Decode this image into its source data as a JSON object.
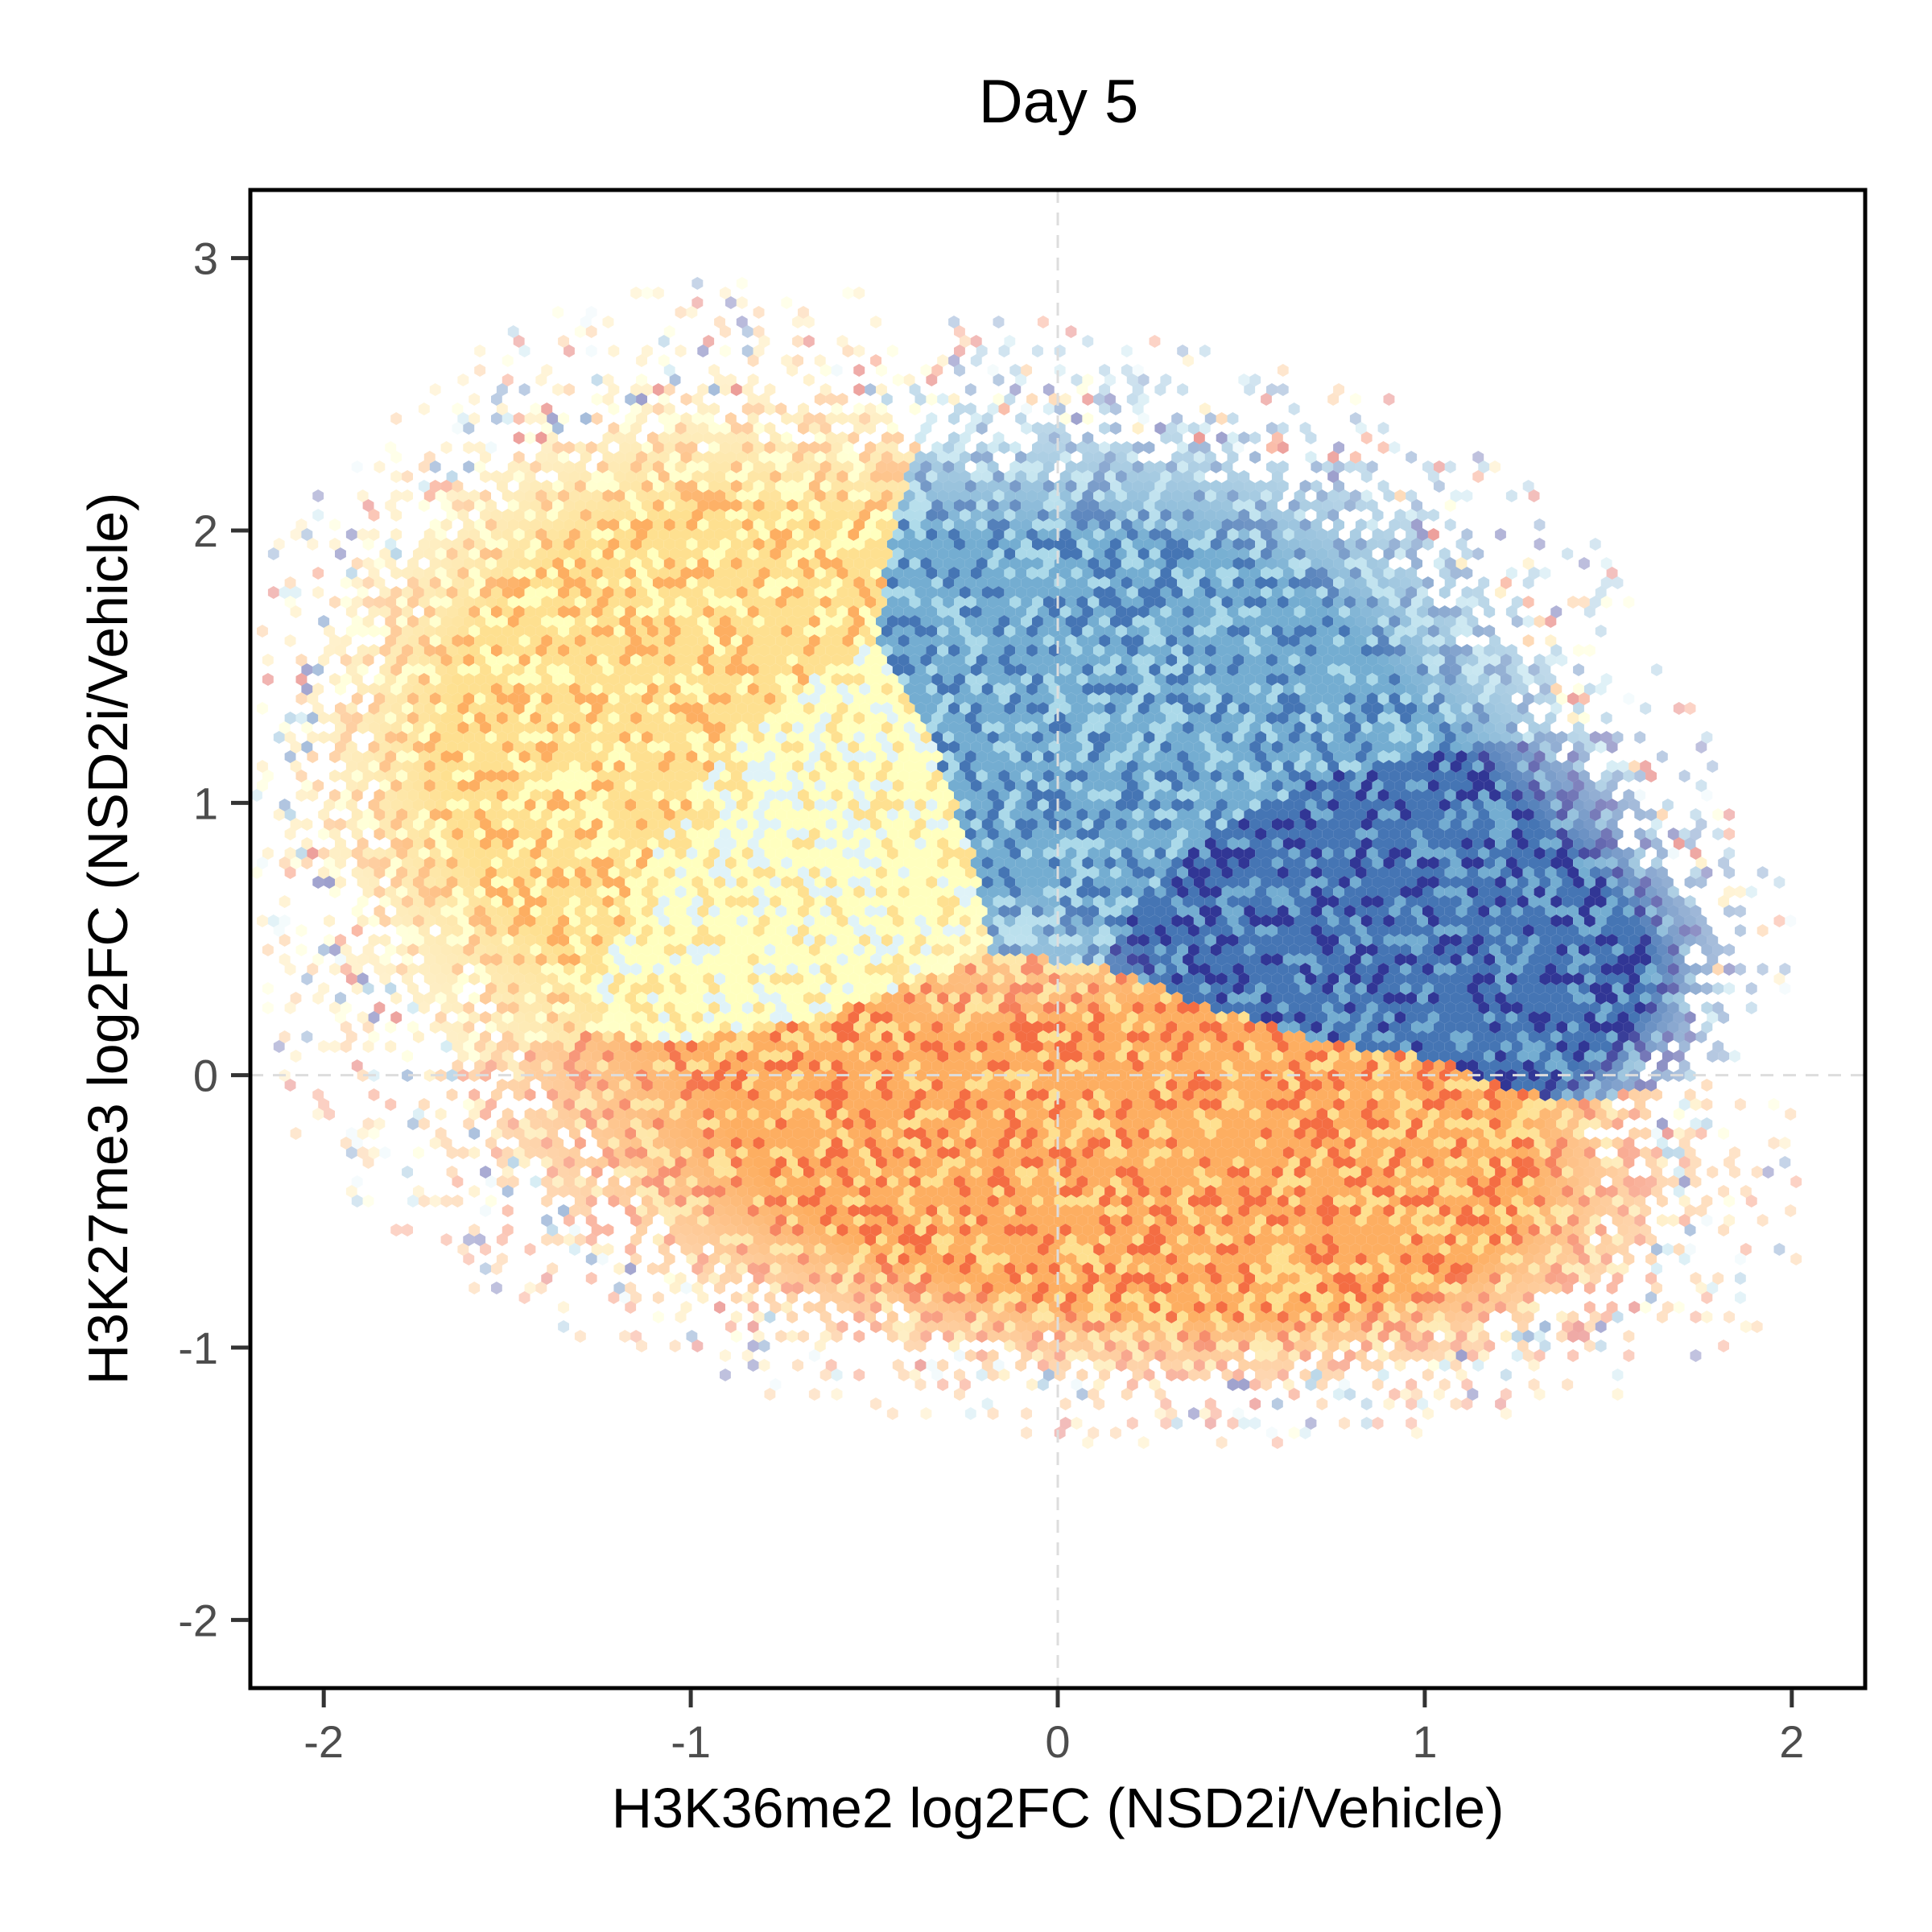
{
  "chart_data": {
    "type": "heatmap",
    "subtype": "hexbin",
    "title": "Day 5",
    "xlabel": "H3K36me2 log2FC (NSD2i/Vehicle)",
    "ylabel": "H3K27me3 log2FC (NSD2i/Vehicle)",
    "xlim": [
      -2.2,
      2.2
    ],
    "ylim": [
      -2.25,
      3.25
    ],
    "x_ticks": [
      -2,
      -1,
      0,
      1,
      2
    ],
    "y_ticks": [
      -2,
      -1,
      0,
      1,
      2,
      3
    ],
    "x_tick_labels": [
      "-2",
      "-1",
      "0",
      "1",
      "2"
    ],
    "y_tick_labels": [
      "-2",
      "-1",
      "0",
      "1",
      "2",
      "3"
    ],
    "reference_lines": {
      "x": 0,
      "y": 0,
      "style": "dashed",
      "color": "#dddddd"
    },
    "grid": false,
    "legend": "none",
    "color_scale": [
      "#313695",
      "#4575b4",
      "#74add1",
      "#abd9e9",
      "#e0f3f8",
      "#ffffbf",
      "#fee090",
      "#fdae61",
      "#f46d43",
      "#d73027"
    ],
    "clusters": [
      {
        "center": [
          0.05,
          -0.35
        ],
        "sd": [
          0.78,
          0.38
        ],
        "tilt": -0.12,
        "color_index": 7
      },
      {
        "center": [
          0.55,
          -0.35
        ],
        "sd": [
          0.45,
          0.3
        ],
        "tilt": -0.05,
        "color_index": 7
      },
      {
        "center": [
          -1.15,
          1.35
        ],
        "sd": [
          0.45,
          0.62
        ],
        "tilt": -0.35,
        "color_index": 6
      },
      {
        "center": [
          -0.75,
          0.95
        ],
        "sd": [
          0.35,
          0.5
        ],
        "tilt": -0.3,
        "color_index": 5
      },
      {
        "center": [
          0.25,
          1.4
        ],
        "sd": [
          0.55,
          0.5
        ],
        "tilt": -0.45,
        "color_index": 2
      },
      {
        "center": [
          0.85,
          0.7
        ],
        "sd": [
          0.45,
          0.35
        ],
        "tilt": -0.4,
        "color_index": 1
      },
      {
        "center": [
          1.3,
          0.35
        ],
        "sd": [
          0.22,
          0.22
        ],
        "tilt": -0.3,
        "color_index": 1
      }
    ]
  }
}
